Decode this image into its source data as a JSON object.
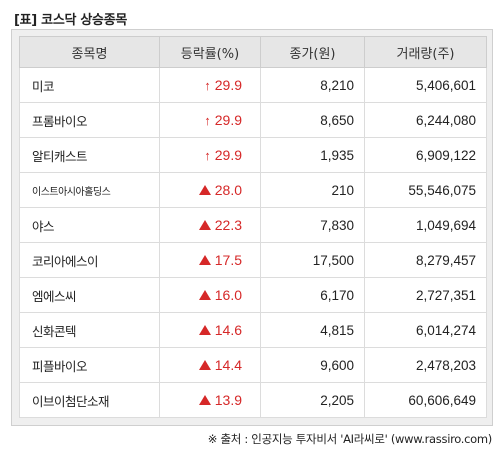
{
  "title": "[표] 코스닥 상승종목",
  "headers": [
    "종목명",
    "등락률(%)",
    "종가(원)",
    "거래량(주)"
  ],
  "rows": [
    {
      "name": "미코",
      "rate": "29.9",
      "marker": "upper-limit-arrow",
      "price": "8,210",
      "volume": "5,406,601"
    },
    {
      "name": "프롬바이오",
      "rate": "29.9",
      "marker": "upper-limit-arrow",
      "price": "8,650",
      "volume": "6,244,080"
    },
    {
      "name": "알티캐스트",
      "rate": "29.9",
      "marker": "upper-limit-arrow",
      "price": "1,935",
      "volume": "6,909,122"
    },
    {
      "name": "이스트아시아홀딩스",
      "rate": "28.0",
      "marker": "up-triangle",
      "price": "210",
      "volume": "55,546,075"
    },
    {
      "name": "야스",
      "rate": "22.3",
      "marker": "up-triangle",
      "price": "7,830",
      "volume": "1,049,694"
    },
    {
      "name": "코리아에스이",
      "rate": "17.5",
      "marker": "up-triangle",
      "price": "17,500",
      "volume": "8,279,457"
    },
    {
      "name": "엠에스씨",
      "rate": "16.0",
      "marker": "up-triangle",
      "price": "6,170",
      "volume": "2,727,351"
    },
    {
      "name": "신화콘텍",
      "rate": "14.6",
      "marker": "up-triangle",
      "price": "4,815",
      "volume": "6,014,274"
    },
    {
      "name": "피플바이오",
      "rate": "14.4",
      "marker": "up-triangle",
      "price": "9,600",
      "volume": "2,478,203"
    },
    {
      "name": "이브이첨단소재",
      "rate": "13.9",
      "marker": "up-triangle",
      "price": "2,205",
      "volume": "60,606,649"
    }
  ],
  "source": "※ 출처 : 인공지능 투자비서 'AI라씨로' (www.rassiro.com)",
  "colors": {
    "up": "#d62828",
    "header_bg": "#e6e6e6",
    "frame_bg": "#efefef"
  }
}
